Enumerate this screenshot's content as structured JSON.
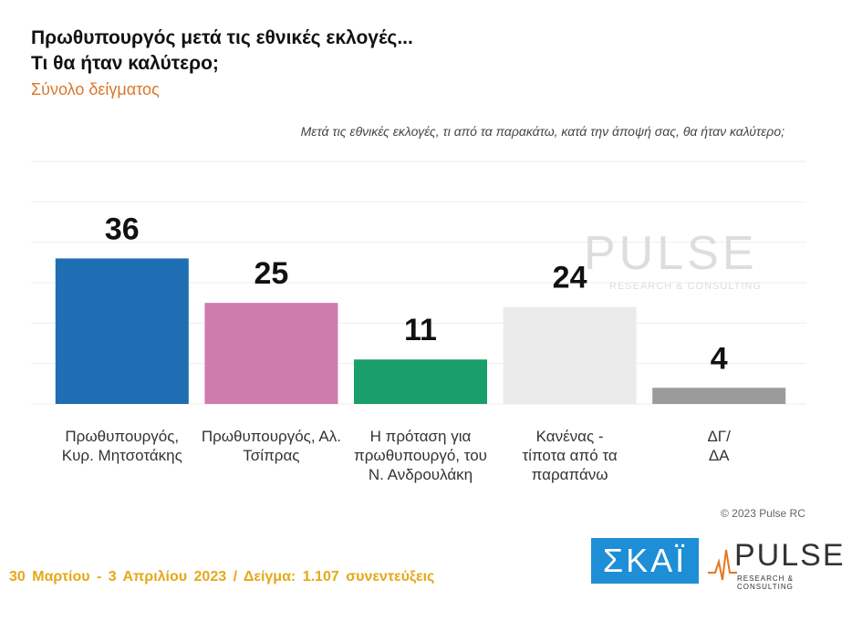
{
  "chart_data": {
    "type": "bar",
    "title": [
      "Πρωθυπουργός μετά τις εθνικές εκλογές...",
      "Τι θα ήταν καλύτερο;"
    ],
    "subtitle": "Σύνολο δείγματος",
    "question": "Μετά τις εθνικές εκλογές, τι από τα παρακάτω, κατά την άποψή σας, θα ήταν καλύτερο;",
    "categories": [
      "Πρωθυπουργός, Κυρ. Μητσοτάκης",
      "Πρωθυπουργός, Αλ. Τσίπρας",
      "Η πρόταση για πρωθυπουργό, του Ν. Ανδρουλάκη",
      "Κανένας - τίποτα από τα παραπάνω",
      "ΔΓ/ ΔΑ"
    ],
    "values": [
      36,
      25,
      11,
      24,
      4
    ],
    "colors": [
      "#1f6db3",
      "#cf7bb0",
      "#1a9e6a",
      "#ebebeb",
      "#9b9b9b"
    ],
    "ylim": [
      0,
      60
    ],
    "yticks": [
      0,
      10,
      20,
      30,
      40,
      50,
      60
    ],
    "grid": true,
    "copyright": "© 2023 Pulse RC",
    "footer": "30 Μαρτίου - 3 Απριλίου 2023 / Δείγμα: 1.107 συνεντεύξεις",
    "logos": {
      "skai": "ΣΚΑΪ",
      "pulse": "PULSE",
      "pulse_tagline": "RESEARCH & CONSULTING"
    }
  }
}
